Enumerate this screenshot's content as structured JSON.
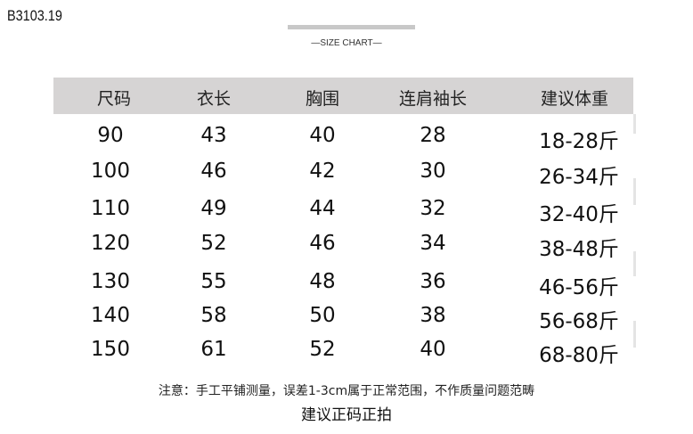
{
  "product_code": "B3103.19",
  "subtitle": "—SIZE CHART—",
  "table": {
    "headers": [
      "尺码",
      "衣长",
      "胸围",
      "连肩袖长",
      "建议体重"
    ],
    "rows": [
      [
        "90",
        "43",
        "40",
        "28",
        "18-28斤"
      ],
      [
        "100",
        "46",
        "42",
        "30",
        "26-34斤"
      ],
      [
        "110",
        "49",
        "44",
        "32",
        "32-40斤"
      ],
      [
        "120",
        "52",
        "46",
        "34",
        "38-48斤"
      ],
      [
        "130",
        "55",
        "48",
        "36",
        "46-56斤"
      ],
      [
        "140",
        "58",
        "50",
        "38",
        "56-68斤"
      ],
      [
        "150",
        "61",
        "52",
        "40",
        "68-80斤"
      ]
    ]
  },
  "note": "注意：手工平铺测量，误差1-3cm属于正常范围，不作质量问题范畴",
  "recommendation": "建议正码正拍",
  "colors": {
    "header_bg": "#d6d4d4",
    "bar": "#c8c8c8"
  }
}
